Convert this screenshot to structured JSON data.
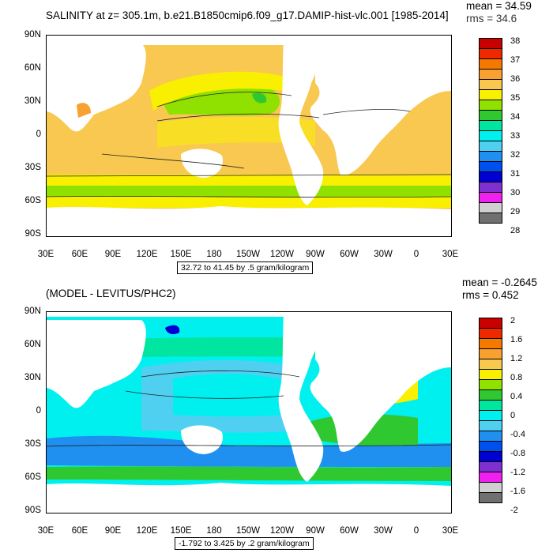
{
  "top": {
    "title": "SALINITY at z= 305.1m, b.e21.B1850cmip6.f09_g17.DAMIP-hist-vlc.001 [1985-2014]",
    "mean": "mean = 34.59",
    "rms": "rms = 34.6",
    "range_note": "32.72 to 41.45 by .5 gram/kilogram",
    "lat_labels": [
      "90N",
      "60N",
      "30N",
      "0",
      "30S",
      "60S",
      "90S"
    ],
    "lon_labels": [
      "30E",
      "60E",
      "90E",
      "120E",
      "150E",
      "180",
      "150W",
      "120W",
      "90W",
      "60W",
      "30W",
      "0",
      "30E"
    ],
    "colorbar_labels": [
      "38",
      "37",
      "36",
      "35",
      "34",
      "33",
      "32",
      "31",
      "30",
      "29",
      "28"
    ],
    "colorbar_colors": [
      "#c80000",
      "#f02800",
      "#f57800",
      "#f8a030",
      "#f8c850",
      "#f8f000",
      "#90e000",
      "#30c830",
      "#00e6a0",
      "#00f0f0",
      "#50d0f0",
      "#2090f0",
      "#0050f0",
      "#0000d0",
      "#8030d0",
      "#f020f0",
      "#d0d0d0",
      "#707070"
    ]
  },
  "bottom": {
    "title": "(MODEL - LEVITUS/PHC2)",
    "mean": "mean = -0.2645",
    "rms": "rms = 0.452",
    "range_note": "-1.792 to 3.425 by .2 gram/kilogram",
    "lat_labels": [
      "90N",
      "60N",
      "30N",
      "0",
      "30S",
      "60S",
      "90S"
    ],
    "lon_labels": [
      "30E",
      "60E",
      "90E",
      "120E",
      "150E",
      "180",
      "150W",
      "120W",
      "90W",
      "60W",
      "30W",
      "0",
      "30E"
    ],
    "colorbar_labels": [
      "2",
      "1.6",
      "1.2",
      "0.8",
      "0.4",
      "0",
      "-0.4",
      "-0.8",
      "-1.2",
      "-1.6",
      "-2"
    ],
    "colorbar_colors": [
      "#c80000",
      "#f02800",
      "#f57800",
      "#f8a030",
      "#f8c850",
      "#f8f000",
      "#90e000",
      "#30c830",
      "#00e6a0",
      "#00f0f0",
      "#50d0f0",
      "#2090f0",
      "#0050f0",
      "#0000d0",
      "#8030d0",
      "#f020f0",
      "#d0d0d0",
      "#707070"
    ]
  }
}
